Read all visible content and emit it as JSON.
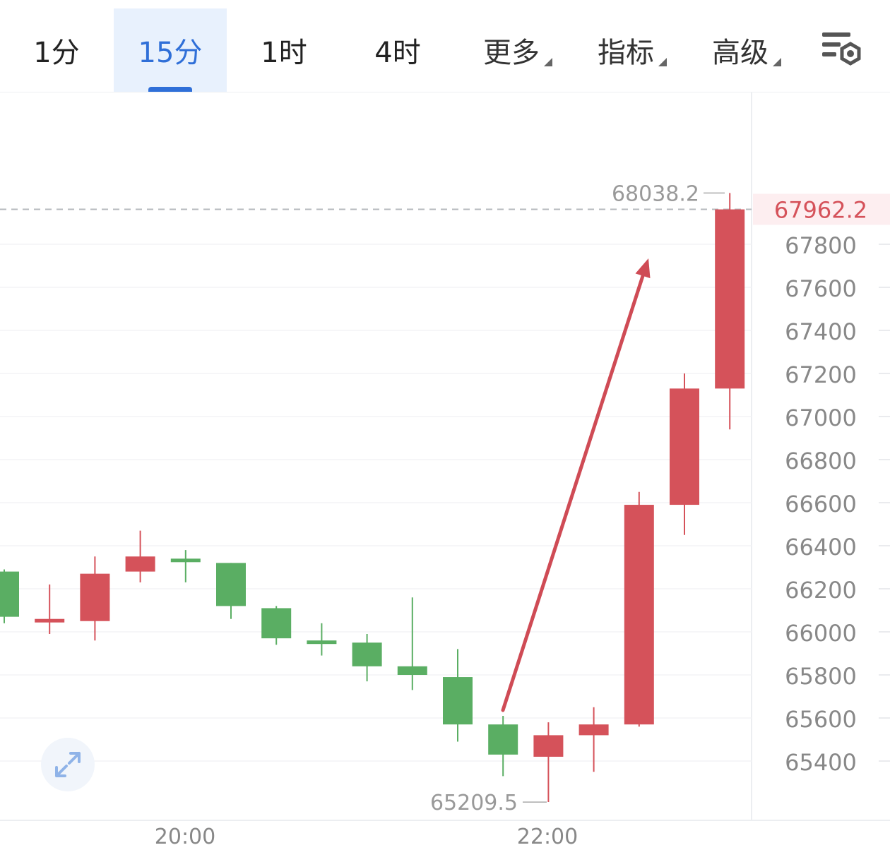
{
  "toolbar": {
    "intervals": [
      {
        "label": "1分"
      },
      {
        "label": "15分",
        "active": true
      },
      {
        "label": "1时"
      },
      {
        "label": "4时"
      }
    ],
    "dropdowns": [
      {
        "label": "更多"
      },
      {
        "label": "指标"
      },
      {
        "label": "高级"
      }
    ],
    "settings_icon": "chart-settings-icon"
  },
  "colors": {
    "up": "#d5525a",
    "down": "#5aae63",
    "accent": "#2f6fd8",
    "arrow": "#cf4b55"
  },
  "chart_data": {
    "type": "candlestick",
    "interval": "15分",
    "y_ticks": [
      67800,
      67600,
      67400,
      67200,
      67000,
      66800,
      66600,
      66400,
      66200,
      66000,
      65800,
      65600,
      65400
    ],
    "x_ticks": [
      "20:00",
      "22:00"
    ],
    "current_price": "67962.2",
    "max_label": "68038.2",
    "min_label": "65209.5",
    "candles": [
      {
        "o": 66280,
        "c": 66070,
        "h": 66290,
        "l": 66040
      },
      {
        "o": 66060,
        "c": 66060,
        "h": 66220,
        "l": 65990
      },
      {
        "o": 66050,
        "c": 66270,
        "h": 66350,
        "l": 65960
      },
      {
        "o": 66280,
        "c": 66350,
        "h": 66470,
        "l": 66230
      },
      {
        "o": 66340,
        "c": 66330,
        "h": 66380,
        "l": 66230
      },
      {
        "o": 66320,
        "c": 66120,
        "h": 66320,
        "l": 66060
      },
      {
        "o": 66110,
        "c": 65970,
        "h": 66120,
        "l": 65940
      },
      {
        "o": 65960,
        "c": 65950,
        "h": 66040,
        "l": 65890
      },
      {
        "o": 65950,
        "c": 65840,
        "h": 65990,
        "l": 65770
      },
      {
        "o": 65840,
        "c": 65800,
        "h": 66160,
        "l": 65730
      },
      {
        "o": 65790,
        "c": 65570,
        "h": 65920,
        "l": 65490
      },
      {
        "o": 65570,
        "c": 65430,
        "h": 65610,
        "l": 65330
      },
      {
        "o": 65420,
        "c": 65520,
        "h": 65580,
        "l": 65210
      },
      {
        "o": 65520,
        "c": 65570,
        "h": 65650,
        "l": 65350
      },
      {
        "o": 65570,
        "c": 66590,
        "h": 66650,
        "l": 65560
      },
      {
        "o": 66590,
        "c": 67130,
        "h": 67200,
        "l": 66450
      },
      {
        "o": 67130,
        "c": 67962,
        "h": 68038,
        "l": 66940
      }
    ],
    "annotation": "upward arrow"
  }
}
